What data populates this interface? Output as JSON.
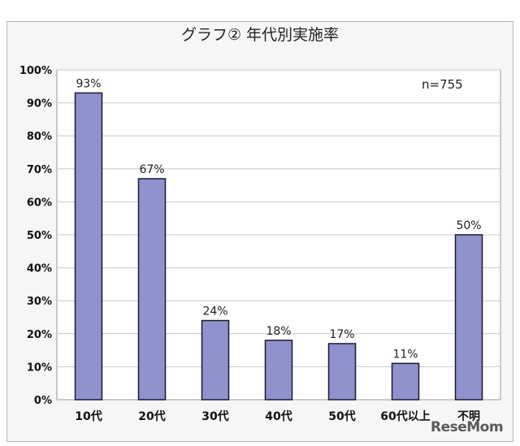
{
  "chart_data": {
    "type": "bar",
    "title": "グラフ② 年代別実施率",
    "categories": [
      "10代",
      "20代",
      "30代",
      "40代",
      "50代",
      "60代以上",
      "不明"
    ],
    "values": [
      93,
      67,
      24,
      18,
      17,
      11,
      50
    ],
    "data_labels": [
      "93%",
      "67%",
      "24%",
      "18%",
      "17%",
      "11%",
      "50%"
    ],
    "annotation": "n=755",
    "ylim": [
      0,
      100
    ],
    "yticks": [
      "0%",
      "10%",
      "20%",
      "30%",
      "40%",
      "50%",
      "60%",
      "70%",
      "80%",
      "90%",
      "100%"
    ],
    "grid": true,
    "legend": "none",
    "colors": {
      "bar": "#8f92cc",
      "bar_border": "#1a1a2e",
      "grid": "#c8c8c8"
    }
  },
  "watermark": "ReseMom"
}
